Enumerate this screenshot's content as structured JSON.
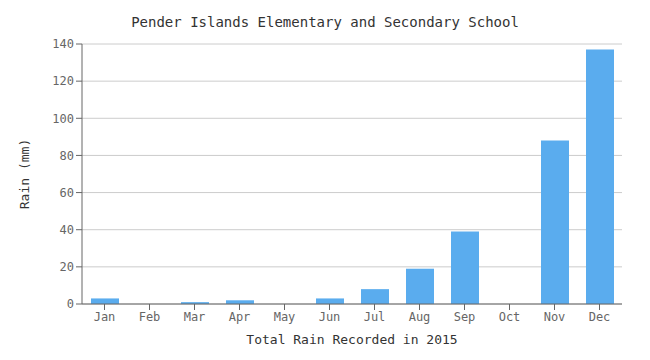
{
  "chart_data": {
    "type": "bar",
    "title": "Pender Islands Elementary and Secondary School",
    "xlabel": "Total Rain Recorded in 2015",
    "ylabel": "Rain (mm)",
    "categories": [
      "Jan",
      "Feb",
      "Mar",
      "Apr",
      "May",
      "Jun",
      "Jul",
      "Aug",
      "Sep",
      "Oct",
      "Nov",
      "Dec"
    ],
    "values": [
      3,
      0,
      1,
      2,
      0,
      3,
      8,
      19,
      39,
      0,
      88,
      137
    ],
    "color": "#5aacee",
    "ylim": [
      0,
      140
    ],
    "yticks": [
      0,
      20,
      40,
      60,
      80,
      100,
      120,
      140
    ],
    "grid": true
  }
}
